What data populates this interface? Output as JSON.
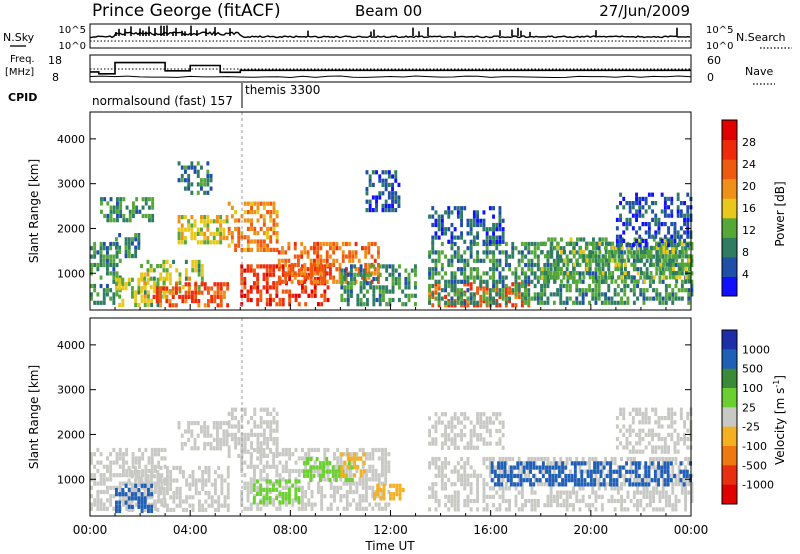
{
  "header": {
    "station": "Prince George (fitACF)",
    "beam": "Beam 00",
    "date": "27/Jun/2009"
  },
  "panels": {
    "nsky": {
      "label": "N.Sky",
      "ticks": [
        "10^5",
        "10^0"
      ]
    },
    "nsearch": {
      "label": "N.Search",
      "ticks": [
        "10^5",
        "10^0"
      ]
    },
    "freq": {
      "label_line1": "Freq.",
      "label_line2": "[MHz]",
      "ticks": [
        "18",
        "8"
      ]
    },
    "nave": {
      "label": "Nave",
      "ticks": [
        "60",
        "0"
      ]
    },
    "cpid": {
      "label": "CPID",
      "modes": [
        "normalsound (fast) 157",
        "themis 3300"
      ]
    }
  },
  "axes": {
    "ylabel": "Slant Range [km]",
    "xlabel": "Time UT",
    "y_ticks": [
      "1000",
      "2000",
      "3000",
      "4000"
    ],
    "x_ticks": [
      "00:00",
      "04:00",
      "08:00",
      "12:00",
      "16:00",
      "20:00",
      "00:00"
    ]
  },
  "power_colorbar": {
    "label": "Power [dB]",
    "ticks": [
      "4",
      "8",
      "12",
      "16",
      "20",
      "24",
      "28"
    ],
    "colors": [
      "#1010ff",
      "#1f4fa8",
      "#2e7d62",
      "#55a838",
      "#e8c81a",
      "#f09018",
      "#f05a10",
      "#ee2a0a",
      "#e00000"
    ]
  },
  "velocity_colorbar": {
    "label": "Velocity [m s",
    "label_sup": "-1",
    "label_end": "]",
    "ticks": [
      "1000",
      "500",
      "100",
      "25",
      "-25",
      "-100",
      "-500",
      "-1000"
    ],
    "colors": [
      "#1c2fa8",
      "#1f5fb8",
      "#3a8a3a",
      "#6ad030",
      "#c8c8c4",
      "#f5b020",
      "#f07810",
      "#e83010",
      "#e00000"
    ]
  },
  "chart_data": {
    "type": "heatmap",
    "title": "Prince George (fitACF)",
    "subtitle": "Beam 00",
    "xlabel": "Time UT",
    "ylabel": "Slant Range [km]",
    "x_range_hours": [
      0,
      24
    ],
    "y_range_km": [
      180,
      4600
    ],
    "grid": false,
    "freq_mhz_series": [
      {
        "t": 0.0,
        "f": 11.7
      },
      {
        "t": 0.35,
        "f": 11.7
      },
      {
        "t": 0.35,
        "f": 10.8
      },
      {
        "t": 1.0,
        "f": 10.8
      },
      {
        "t": 1.0,
        "f": 15.9
      },
      {
        "t": 3.0,
        "f": 15.9
      },
      {
        "t": 3.0,
        "f": 12.2
      },
      {
        "t": 4.0,
        "f": 12.2
      },
      {
        "t": 4.0,
        "f": 14.6
      },
      {
        "t": 5.2,
        "f": 14.6
      },
      {
        "t": 5.2,
        "f": 11.5
      },
      {
        "t": 6.0,
        "f": 11.5
      },
      {
        "t": 6.0,
        "f": 12.4
      },
      {
        "t": 24.0,
        "f": 12.4
      }
    ],
    "mode_change_hour": 6.0,
    "power_regions": [
      {
        "t0": 0.0,
        "t1": 1.2,
        "r0": 300,
        "r1": 1700,
        "db": 10
      },
      {
        "t0": 1.0,
        "t1": 2.0,
        "r0": 1400,
        "r1": 1900,
        "db": 8
      },
      {
        "t0": 0.4,
        "t1": 2.5,
        "r0": 2200,
        "r1": 2700,
        "db": 10
      },
      {
        "t0": 1.0,
        "t1": 3.0,
        "r0": 300,
        "r1": 900,
        "db": 14
      },
      {
        "t0": 2.0,
        "t1": 4.5,
        "r0": 600,
        "r1": 1300,
        "db": 14
      },
      {
        "t0": 2.5,
        "t1": 5.5,
        "r0": 300,
        "r1": 800,
        "db": 24
      },
      {
        "t0": 3.5,
        "t1": 5.5,
        "r0": 1700,
        "r1": 2300,
        "db": 16
      },
      {
        "t0": 3.5,
        "t1": 4.8,
        "r0": 2800,
        "r1": 3500,
        "db": 8
      },
      {
        "t0": 5.5,
        "t1": 7.5,
        "r0": 1500,
        "r1": 2600,
        "db": 20
      },
      {
        "t0": 6.0,
        "t1": 9.5,
        "r0": 300,
        "r1": 1200,
        "db": 26
      },
      {
        "t0": 7.5,
        "t1": 11.5,
        "r0": 800,
        "r1": 1700,
        "db": 22
      },
      {
        "t0": 10.0,
        "t1": 13.0,
        "r0": 300,
        "r1": 1200,
        "db": 10
      },
      {
        "t0": 11.0,
        "t1": 12.3,
        "r0": 2400,
        "r1": 3300,
        "db": 6
      },
      {
        "t0": 13.5,
        "t1": 17.5,
        "r0": 300,
        "r1": 800,
        "db": 24
      },
      {
        "t0": 13.5,
        "t1": 24.0,
        "r0": 300,
        "r1": 1700,
        "db": 10
      },
      {
        "t0": 13.5,
        "t1": 16.5,
        "r0": 1700,
        "r1": 2500,
        "db": 6
      },
      {
        "t0": 18.0,
        "t1": 24.0,
        "r0": 800,
        "r1": 1800,
        "db": 12
      },
      {
        "t0": 21.0,
        "t1": 24.0,
        "r0": 1600,
        "r1": 2800,
        "db": 5
      }
    ],
    "velocity_regions": [
      {
        "t0": 0.0,
        "t1": 3.0,
        "r0": 300,
        "r1": 1700,
        "v": 0
      },
      {
        "t0": 1.5,
        "t1": 5.5,
        "r0": 300,
        "r1": 1300,
        "v": 0
      },
      {
        "t0": 1.0,
        "t1": 2.5,
        "r0": 300,
        "r1": 900,
        "v": 800
      },
      {
        "t0": 3.5,
        "t1": 5.5,
        "r0": 1700,
        "r1": 2300,
        "v": 0
      },
      {
        "t0": 5.5,
        "t1": 7.5,
        "r0": 1500,
        "r1": 2600,
        "v": 0
      },
      {
        "t0": 6.0,
        "t1": 12.0,
        "r0": 300,
        "r1": 1700,
        "v": 0
      },
      {
        "t0": 6.5,
        "t1": 8.3,
        "r0": 500,
        "r1": 1000,
        "v": 60
      },
      {
        "t0": 8.5,
        "t1": 10.5,
        "r0": 1000,
        "r1": 1500,
        "v": 60
      },
      {
        "t0": 10.0,
        "t1": 11.0,
        "r0": 1100,
        "r1": 1600,
        "v": -80
      },
      {
        "t0": 11.3,
        "t1": 12.5,
        "r0": 600,
        "r1": 900,
        "v": -80
      },
      {
        "t0": 13.5,
        "t1": 24.0,
        "r0": 300,
        "r1": 1500,
        "v": 0
      },
      {
        "t0": 16.0,
        "t1": 24.0,
        "r0": 900,
        "r1": 1400,
        "v": 700
      },
      {
        "t0": 13.5,
        "t1": 16.5,
        "r0": 1700,
        "r1": 2500,
        "v": 0
      },
      {
        "t0": 21.0,
        "t1": 24.0,
        "r0": 1600,
        "r1": 2600,
        "v": 0
      }
    ]
  }
}
